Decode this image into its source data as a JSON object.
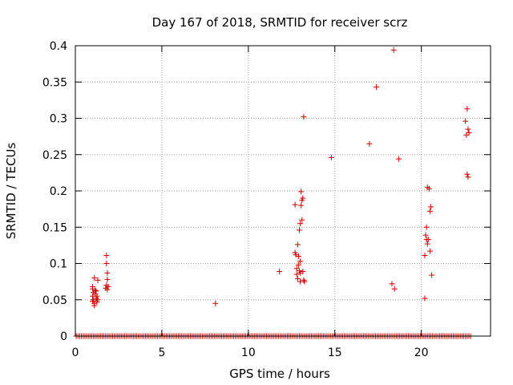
{
  "chart_data": {
    "type": "scatter",
    "title": "Day 167 of 2018, SRMTID for receiver scrz",
    "xlabel": "GPS time / hours",
    "ylabel": "SRMTID / TECUs",
    "xlim": [
      0,
      24
    ],
    "ylim": [
      0,
      0.4
    ],
    "x_ticks": [
      0,
      5,
      10,
      15,
      20
    ],
    "x_tick_labels": [
      "0",
      "5",
      "10",
      "15",
      "20"
    ],
    "y_ticks": [
      0,
      0.05,
      0.1,
      0.15,
      0.2,
      0.25,
      0.3,
      0.35,
      0.4
    ],
    "y_tick_labels": [
      "0",
      "0.05",
      "0.1",
      "0.15",
      "0.2",
      "0.25",
      "0.3",
      "0.35",
      "0.4"
    ],
    "grid": true,
    "marker": "+",
    "marker_color": "#cc0000",
    "zero_band": {
      "x_start": 0.05,
      "x_end": 22.8,
      "step": 0.1,
      "y": 0
    },
    "points": [
      [
        1.0,
        0.068
      ],
      [
        1.0,
        0.065
      ],
      [
        1.05,
        0.06
      ],
      [
        1.0,
        0.055
      ],
      [
        1.05,
        0.05
      ],
      [
        1.0,
        0.048
      ],
      [
        1.1,
        0.045
      ],
      [
        1.1,
        0.042
      ],
      [
        1.1,
        0.08
      ],
      [
        1.15,
        0.058
      ],
      [
        1.2,
        0.052
      ],
      [
        1.2,
        0.062
      ],
      [
        1.25,
        0.055
      ],
      [
        1.3,
        0.077
      ],
      [
        1.3,
        0.05
      ],
      [
        1.15,
        0.063
      ],
      [
        1.25,
        0.047
      ],
      [
        1.8,
        0.111
      ],
      [
        1.8,
        0.1
      ],
      [
        1.85,
        0.087
      ],
      [
        1.85,
        0.078
      ],
      [
        1.8,
        0.07
      ],
      [
        1.75,
        0.066
      ],
      [
        1.9,
        0.068
      ],
      [
        1.85,
        0.064
      ],
      [
        8.1,
        0.045
      ],
      [
        11.8,
        0.089
      ],
      [
        12.7,
        0.181
      ],
      [
        12.7,
        0.115
      ],
      [
        12.75,
        0.112
      ],
      [
        12.8,
        0.093
      ],
      [
        12.8,
        0.085
      ],
      [
        12.85,
        0.079
      ],
      [
        12.85,
        0.126
      ],
      [
        12.9,
        0.11
      ],
      [
        12.9,
        0.098
      ],
      [
        12.95,
        0.09
      ],
      [
        12.95,
        0.146
      ],
      [
        13.0,
        0.103
      ],
      [
        13.0,
        0.087
      ],
      [
        13.0,
        0.075
      ],
      [
        13.0,
        0.155
      ],
      [
        13.05,
        0.199
      ],
      [
        13.05,
        0.18
      ],
      [
        13.1,
        0.187
      ],
      [
        13.1,
        0.16
      ],
      [
        13.15,
        0.19
      ],
      [
        13.15,
        0.089
      ],
      [
        13.2,
        0.302
      ],
      [
        13.2,
        0.077
      ],
      [
        13.25,
        0.075
      ],
      [
        14.8,
        0.246
      ],
      [
        17.0,
        0.265
      ],
      [
        17.4,
        0.343
      ],
      [
        18.4,
        0.394
      ],
      [
        18.3,
        0.072
      ],
      [
        18.45,
        0.065
      ],
      [
        18.7,
        0.244
      ],
      [
        20.2,
        0.052
      ],
      [
        20.2,
        0.111
      ],
      [
        20.25,
        0.139
      ],
      [
        20.3,
        0.15
      ],
      [
        20.3,
        0.133
      ],
      [
        20.35,
        0.127
      ],
      [
        20.35,
        0.205
      ],
      [
        20.4,
        0.133
      ],
      [
        20.45,
        0.203
      ],
      [
        20.5,
        0.172
      ],
      [
        20.5,
        0.117
      ],
      [
        20.55,
        0.178
      ],
      [
        20.6,
        0.084
      ],
      [
        22.55,
        0.296
      ],
      [
        22.6,
        0.277
      ],
      [
        22.65,
        0.313
      ],
      [
        22.65,
        0.223
      ],
      [
        22.7,
        0.285
      ],
      [
        22.7,
        0.219
      ],
      [
        22.75,
        0.28
      ]
    ]
  }
}
